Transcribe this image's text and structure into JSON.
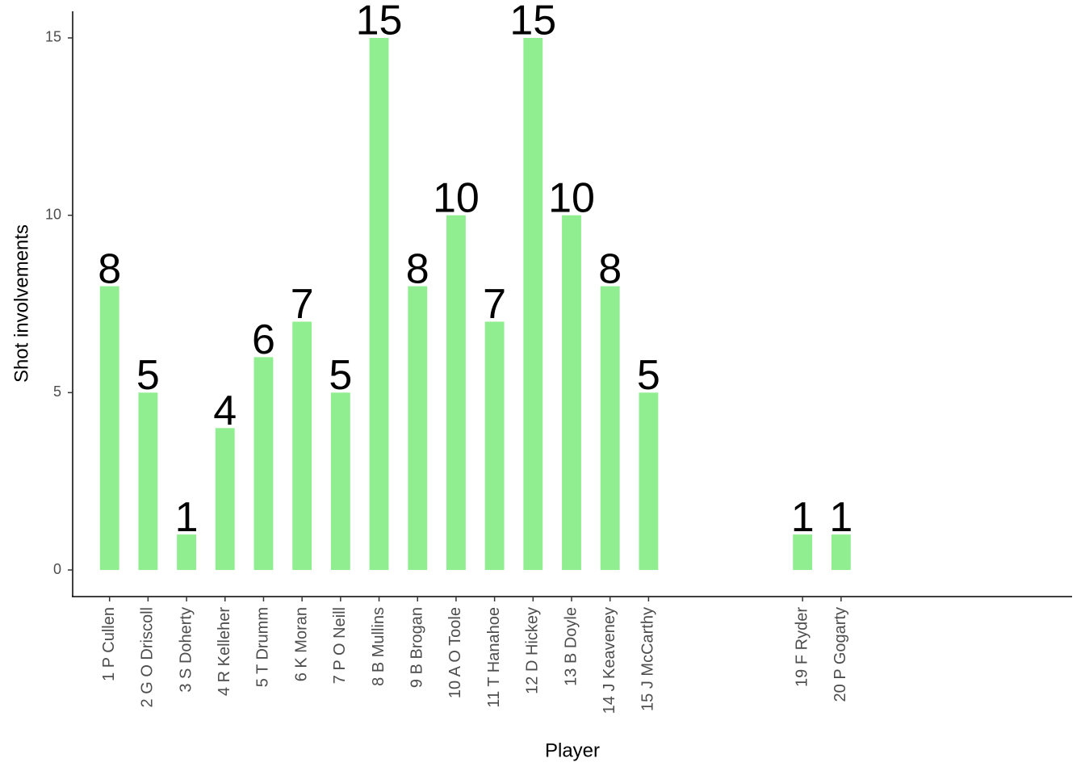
{
  "chart_data": {
    "type": "bar",
    "x_label": "Player",
    "y_label": "Shot involvements",
    "categories": [
      "1  P Cullen",
      "2  G O Driscoll",
      "3  S Doherty",
      "4  R Kelleher",
      "5  T Drumm",
      "6  K Moran",
      "7  P O Neill",
      "8  B Mullins",
      "9  B Brogan",
      "10  A O Toole",
      "11 T Hanahoe",
      "12  D Hickey",
      "13  B Doyle",
      "14  J Keaveney",
      "15  J McCarthy",
      null,
      null,
      null,
      "19  F Ryder",
      "20  P Gogarty",
      null,
      null,
      null,
      null,
      null
    ],
    "values": [
      8,
      5,
      1,
      4,
      6,
      7,
      5,
      15,
      8,
      10,
      7,
      15,
      10,
      8,
      5,
      null,
      null,
      null,
      1,
      1,
      null,
      null,
      null,
      null,
      null
    ],
    "color": "#90ee90",
    "ylim": [
      -0.75,
      15.75
    ],
    "yticks": [
      0,
      5,
      10,
      15
    ],
    "grid": false
  }
}
